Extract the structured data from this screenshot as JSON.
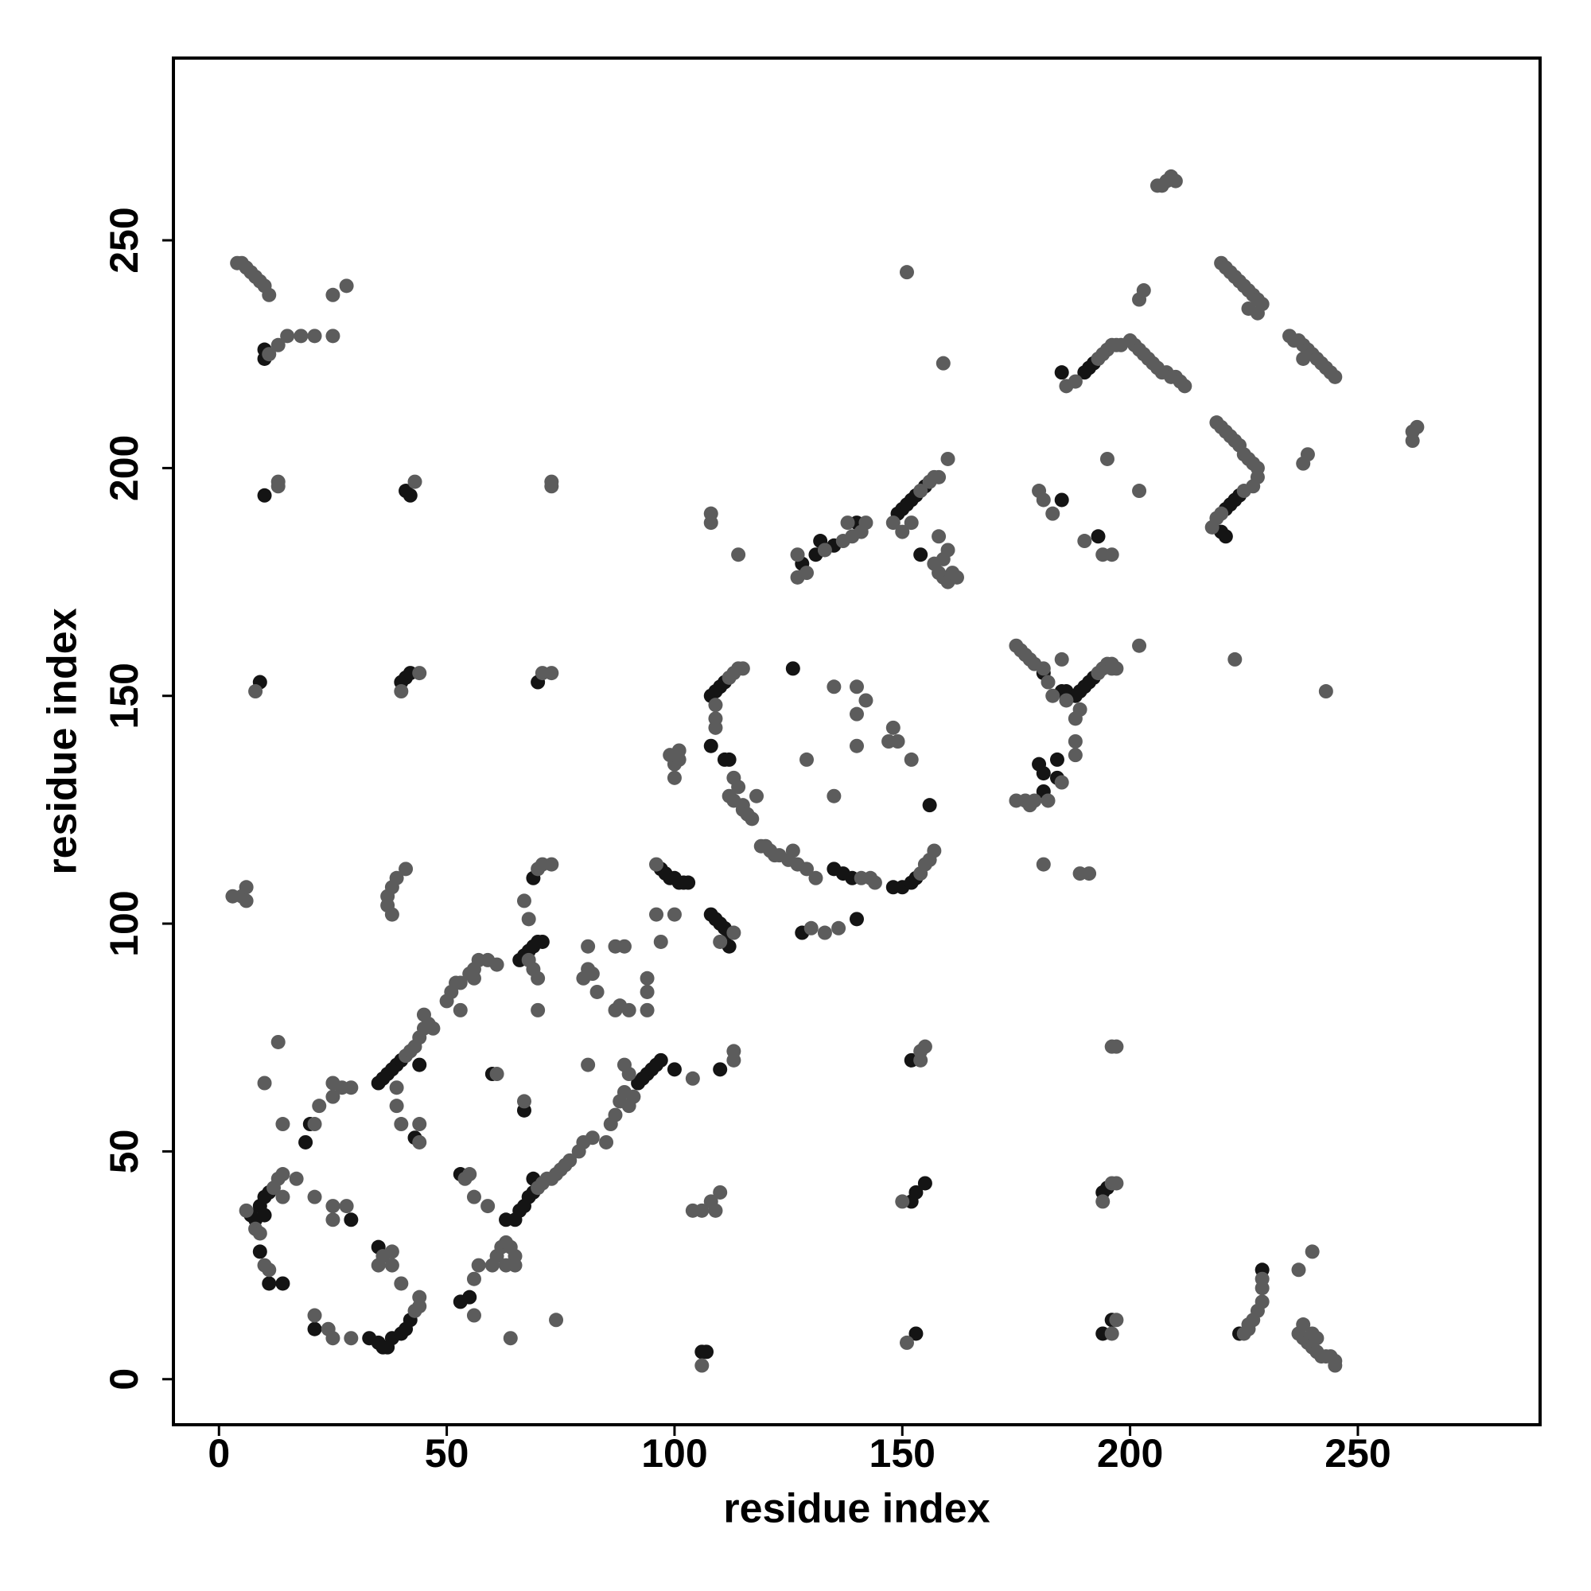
{
  "chart_data": {
    "type": "scatter",
    "xlabel": "residue index",
    "ylabel": "residue index",
    "xlim": [
      -10,
      290
    ],
    "ylim": [
      -10,
      290
    ],
    "xticks": [
      0,
      50,
      100,
      150,
      200,
      250
    ],
    "yticks": [
      0,
      50,
      100,
      150,
      200,
      250
    ],
    "grid": false,
    "series": [
      {
        "color": "#141414",
        "x": [
          7,
          8,
          9,
          10,
          11,
          10,
          9,
          11,
          14,
          21,
          33,
          35,
          36,
          37,
          38,
          40,
          41,
          42,
          10,
          10,
          10,
          9,
          42,
          41,
          40,
          41,
          42,
          35,
          36,
          37,
          38,
          39,
          40,
          44,
          43,
          19,
          20,
          29,
          35,
          63,
          65,
          66,
          67,
          68,
          69,
          69,
          53,
          53,
          55,
          60,
          67,
          66,
          67,
          68,
          69,
          70,
          71,
          69,
          70,
          92,
          93,
          94,
          95,
          96,
          97,
          100,
          97,
          98,
          99,
          100,
          101,
          102,
          103,
          108,
          109,
          110,
          111,
          112,
          112,
          110,
          108,
          109,
          110,
          111,
          108,
          111,
          112,
          126,
          135,
          137,
          139,
          148,
          150,
          152,
          153,
          128,
          140,
          128,
          131,
          135,
          132,
          140,
          149,
          150,
          151,
          152,
          153,
          155,
          154,
          152,
          152,
          153,
          155,
          153,
          180,
          181,
          184,
          184,
          181,
          181,
          185,
          186,
          187,
          188,
          189,
          190,
          191,
          192,
          185,
          193,
          185,
          190,
          191,
          192,
          221,
          222,
          223,
          224,
          220,
          221,
          194,
          195,
          194,
          196,
          229,
          224,
          106,
          107,
          156
        ],
        "y": [
          36,
          35,
          38,
          40,
          41,
          36,
          28,
          21,
          21,
          11,
          9,
          8,
          7,
          7,
          9,
          10,
          11,
          13,
          226,
          224,
          194,
          153,
          194,
          195,
          153,
          154,
          155,
          65,
          66,
          67,
          68,
          69,
          70,
          69,
          53,
          52,
          56,
          35,
          29,
          35,
          35,
          37,
          38,
          40,
          41,
          44,
          45,
          17,
          18,
          67,
          59,
          92,
          93,
          94,
          95,
          96,
          96,
          110,
          153,
          65,
          66,
          67,
          68,
          69,
          70,
          68,
          112,
          111,
          110,
          110,
          109,
          109,
          109,
          102,
          101,
          100,
          99,
          98,
          95,
          68,
          150,
          151,
          152,
          153,
          139,
          136,
          136,
          156,
          112,
          111,
          110,
          108,
          108,
          109,
          110,
          98,
          101,
          179,
          181,
          183,
          184,
          188,
          190,
          191,
          192,
          193,
          194,
          196,
          181,
          70,
          39,
          41,
          43,
          10,
          135,
          133,
          136,
          132,
          129,
          155,
          151,
          151,
          150,
          150,
          151,
          152,
          153,
          154,
          193,
          185,
          221,
          221,
          222,
          223,
          191,
          192,
          193,
          194,
          186,
          185,
          41,
          42,
          10,
          13,
          24,
          10,
          6,
          6,
          126
        ]
      },
      {
        "color": "#5c5c5c",
        "x": [
          4,
          5,
          6,
          7,
          8,
          9,
          10,
          11,
          11,
          13,
          15,
          18,
          21,
          25,
          25,
          28,
          13,
          13,
          8,
          3,
          5,
          6,
          6,
          43,
          40,
          44,
          37,
          38,
          39,
          41,
          37,
          38,
          73,
          73,
          71,
          73,
          6,
          12,
          13,
          14,
          8,
          9,
          10,
          11,
          21,
          24,
          25,
          29,
          43,
          44,
          44,
          14,
          17,
          21,
          22,
          25,
          25,
          27,
          29,
          21,
          25,
          25,
          28,
          36,
          38,
          38,
          35,
          40,
          14,
          13,
          10,
          41,
          42,
          43,
          44,
          45,
          46,
          47,
          45,
          39,
          39,
          40,
          44,
          44,
          50,
          51,
          53,
          55,
          56,
          57,
          59,
          61,
          53,
          56,
          52,
          61,
          67,
          68,
          67,
          68,
          70,
          71,
          73,
          69,
          70,
          70,
          59,
          70,
          71,
          72,
          73,
          74,
          75,
          76,
          77,
          79,
          80,
          82,
          85,
          86,
          87,
          88,
          89,
          90,
          91,
          54,
          55,
          56,
          57,
          56,
          60,
          61,
          62,
          63,
          64,
          65,
          63,
          65,
          64,
          74,
          56,
          80,
          81,
          82,
          83,
          81,
          87,
          89,
          87,
          88,
          90,
          94,
          94,
          94,
          81,
          89,
          90,
          104,
          96,
          96,
          100,
          97,
          113,
          110,
          113,
          113,
          110,
          108,
          106,
          104,
          109,
          106,
          100,
          100,
          101,
          112,
          113,
          114,
          115,
          109,
          109,
          109,
          113,
          112,
          113,
          115,
          115,
          116,
          117,
          114,
          118,
          119,
          120,
          121,
          122,
          123,
          125,
          127,
          129,
          131,
          141,
          144,
          154,
          155,
          156,
          157,
          143,
          126,
          130,
          133,
          136,
          129,
          135,
          135,
          140,
          142,
          140,
          148,
          149,
          152,
          147,
          140,
          127,
          129,
          133,
          137,
          139,
          141,
          142,
          138,
          127,
          148,
          154,
          156,
          157,
          158,
          160,
          150,
          152,
          157,
          158,
          159,
          160,
          161,
          162,
          158,
          160,
          159,
          108,
          108,
          114,
          151,
          159,
          154,
          154,
          155,
          150,
          151,
          175,
          176,
          177,
          178,
          179,
          181,
          182,
          185,
          183,
          193,
          194,
          195,
          196,
          197,
          186,
          189,
          188,
          188,
          188,
          182,
          185,
          177,
          178,
          179,
          175,
          181,
          189,
          191,
          194,
          196,
          196,
          202,
          180,
          181,
          183,
          190,
          195,
          202,
          186,
          188,
          193,
          194,
          195,
          196,
          197,
          198,
          200,
          201,
          202,
          203,
          204,
          205,
          206,
          207,
          208,
          209,
          210,
          211,
          212,
          202,
          203,
          206,
          207,
          208,
          209,
          210,
          220,
          221,
          222,
          223,
          224,
          225,
          226,
          227,
          228,
          229,
          228,
          226,
          235,
          236,
          237,
          238,
          239,
          240,
          241,
          242,
          243,
          244,
          245,
          238,
          219,
          220,
          221,
          222,
          223,
          224,
          225,
          226,
          227,
          228,
          228,
          220,
          219,
          218,
          227,
          225,
          262,
          263,
          262,
          238,
          239,
          223,
          243,
          196,
          197,
          194,
          196,
          197,
          197,
          196,
          225,
          226,
          227,
          228,
          229,
          229,
          229,
          226,
          237,
          238,
          239,
          240,
          241,
          242,
          243,
          244,
          245,
          245,
          238,
          240,
          241,
          237,
          240,
          101,
          99
        ],
        "y": [
          245,
          245,
          244,
          243,
          242,
          241,
          240,
          238,
          225,
          227,
          229,
          229,
          229,
          229,
          238,
          240,
          197,
          196,
          151,
          106,
          106,
          108,
          105,
          197,
          151,
          155,
          106,
          108,
          110,
          112,
          104,
          102,
          197,
          196,
          155,
          155,
          37,
          42,
          44,
          45,
          33,
          32,
          25,
          24,
          14,
          11,
          9,
          9,
          15,
          16,
          18,
          40,
          44,
          56,
          60,
          62,
          65,
          64,
          64,
          40,
          35,
          38,
          38,
          27,
          28,
          25,
          25,
          21,
          56,
          74,
          65,
          71,
          72,
          73,
          75,
          77,
          78,
          77,
          80,
          64,
          60,
          56,
          52,
          56,
          83,
          85,
          87,
          89,
          90,
          92,
          92,
          91,
          81,
          88,
          87,
          67,
          61,
          92,
          105,
          101,
          112,
          113,
          113,
          90,
          88,
          81,
          38,
          42,
          43,
          44,
          44,
          45,
          46,
          47,
          48,
          50,
          52,
          53,
          52,
          56,
          58,
          61,
          63,
          60,
          62,
          44,
          45,
          22,
          25,
          14,
          25,
          27,
          29,
          30,
          29,
          27,
          25,
          25,
          9,
          13,
          40,
          88,
          90,
          89,
          85,
          95,
          95,
          95,
          81,
          82,
          81,
          88,
          85,
          81,
          69,
          69,
          67,
          66,
          113,
          102,
          102,
          96,
          98,
          96,
          70,
          72,
          41,
          39,
          37,
          37,
          37,
          3,
          132,
          135,
          138,
          154,
          155,
          156,
          156,
          148,
          145,
          143,
          132,
          128,
          127,
          126,
          125,
          124,
          123,
          130,
          128,
          117,
          117,
          116,
          115,
          115,
          114,
          113,
          112,
          110,
          110,
          109,
          111,
          113,
          114,
          116,
          110,
          116,
          99,
          98,
          99,
          136,
          128,
          152,
          152,
          149,
          146,
          143,
          140,
          136,
          140,
          139,
          176,
          177,
          182,
          184,
          185,
          186,
          188,
          188,
          181,
          188,
          195,
          197,
          198,
          198,
          202,
          186,
          188,
          179,
          177,
          176,
          175,
          177,
          176,
          185,
          182,
          180,
          190,
          188,
          181,
          243,
          223,
          70,
          72,
          73,
          39,
          8,
          161,
          160,
          159,
          158,
          157,
          156,
          153,
          158,
          150,
          155,
          156,
          157,
          157,
          156,
          149,
          147,
          145,
          140,
          137,
          127,
          131,
          127,
          126,
          127,
          127,
          113,
          111,
          111,
          181,
          181,
          156,
          161,
          195,
          193,
          190,
          184,
          202,
          195,
          218,
          219,
          224,
          225,
          226,
          227,
          227,
          227,
          228,
          227,
          226,
          225,
          224,
          223,
          222,
          221,
          221,
          220,
          220,
          219,
          218,
          237,
          239,
          262,
          262,
          263,
          264,
          263,
          245,
          244,
          243,
          242,
          241,
          240,
          239,
          238,
          237,
          236,
          234,
          235,
          229,
          228,
          228,
          227,
          226,
          225,
          224,
          223,
          222,
          221,
          220,
          224,
          210,
          209,
          208,
          207,
          206,
          205,
          203,
          202,
          201,
          200,
          198,
          190,
          189,
          187,
          196,
          195,
          208,
          209,
          206,
          201,
          203,
          158,
          151,
          43,
          43,
          39,
          73,
          73,
          13,
          10,
          10,
          11,
          13,
          15,
          17,
          20,
          22,
          12,
          10,
          9,
          8,
          7,
          6,
          5,
          5,
          5,
          4,
          3,
          12,
          10,
          9,
          24,
          28,
          136,
          137
        ]
      }
    ]
  }
}
